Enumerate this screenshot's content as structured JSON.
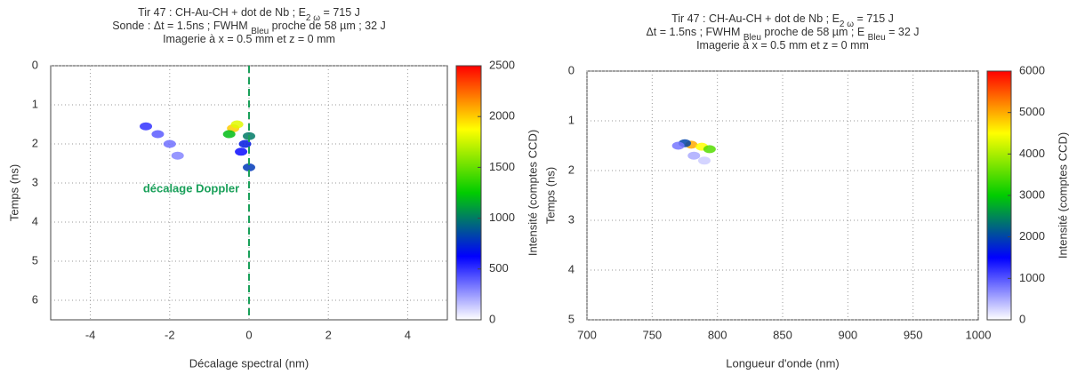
{
  "chart_data": [
    {
      "type": "heatmap",
      "title": [
        [
          "Tir 47 : CH-Au-CH + dot de Nb ; E",
          "2 ω",
          " = 715 J"
        ],
        [
          "Sonde :  Δt = 1.5ns ; FWHM ",
          "Bleu",
          " proche de 58 µm ;  32 J"
        ],
        [
          "Imagerie à x = 0.5 mm et z = 0 mm"
        ]
      ],
      "xlabel": "Décalage spectral (nm)",
      "ylabel": "Temps (ns)",
      "colorbar_label": "Intensité (comptes CCD)",
      "xlim": [
        -5,
        5
      ],
      "xticks": [
        -4,
        -2,
        0,
        2,
        4
      ],
      "ylim": [
        6.5,
        0
      ],
      "yticks": [
        0,
        1,
        2,
        3,
        4,
        5,
        6
      ],
      "zlim": [
        0,
        2500
      ],
      "zticks": [
        0,
        500,
        1000,
        1500,
        2000,
        2500
      ],
      "colormap": [
        "#ffffff",
        "#0000ff",
        "#00cc00",
        "#ffff00",
        "#ff0000"
      ],
      "grid": true,
      "vline": 0,
      "vline_color": "#1aa05a",
      "annotation": "décalage Doppler",
      "annotation_color": "#1aa05a",
      "points": {
        "x": [
          -0.4,
          -0.3,
          -0.5,
          0.0,
          -0.1,
          0.0,
          -2.6,
          -2.3,
          -2.0,
          -1.8,
          -0.2
        ],
        "y": [
          1.6,
          1.5,
          1.75,
          1.8,
          2.0,
          2.6,
          1.55,
          1.75,
          2.0,
          2.3,
          2.2
        ],
        "values": [
          2000,
          1800,
          1200,
          1000,
          700,
          800,
          500,
          400,
          350,
          300,
          600
        ]
      }
    },
    {
      "type": "heatmap",
      "title": [
        [
          "Tir 47 : CH-Au-CH + dot de Nb ; E",
          "2 ω",
          " = 715 J"
        ],
        [
          "Δt = 1.5ns ; FWHM ",
          "Bleu",
          " proche de 58 µm ; E ",
          "Bleu",
          " = 32 J"
        ],
        [
          "Imagerie à x = 0.5 mm et z = 0 mm"
        ]
      ],
      "xlabel": "Longueur d'onde (nm)",
      "ylabel": "Temps (ns)",
      "colorbar_label": "Intensité (comptes CCD)",
      "xlim": [
        700,
        1000
      ],
      "xticks": [
        700,
        750,
        800,
        850,
        900,
        950,
        1000
      ],
      "ylim": [
        5,
        0
      ],
      "yticks": [
        0,
        1,
        2,
        3,
        4,
        5
      ],
      "zlim": [
        0,
        6000
      ],
      "zticks": [
        0,
        1000,
        2000,
        3000,
        4000,
        5000,
        6000
      ],
      "colormap": [
        "#ffffff",
        "#0000ff",
        "#00cc00",
        "#ffff00",
        "#ff0000"
      ],
      "grid": true,
      "points": {
        "x": [
          780,
          788,
          794,
          775,
          770,
          782,
          790
        ],
        "y": [
          1.48,
          1.52,
          1.57,
          1.45,
          1.5,
          1.7,
          1.8
        ],
        "values": [
          5000,
          4500,
          3500,
          2000,
          800,
          500,
          300
        ]
      }
    }
  ]
}
